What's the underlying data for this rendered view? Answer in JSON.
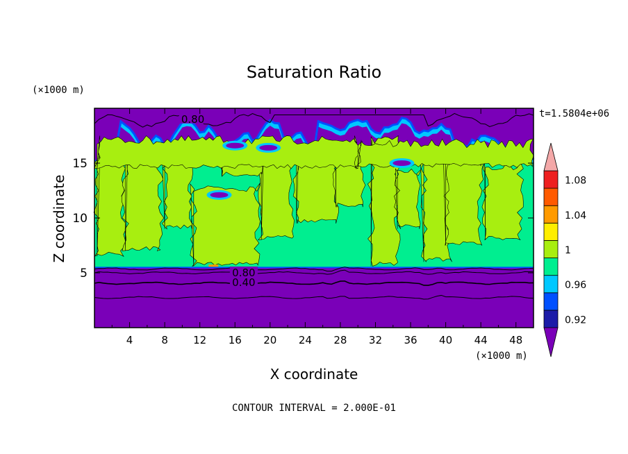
{
  "chart_data": {
    "type": "heatmap",
    "title": "Saturation Ratio",
    "xlabel": "X coordinate",
    "ylabel": "Z coordinate",
    "x_unit": "(×1000 m)",
    "y_unit": "(×1000 m)",
    "time_label": "t=1.5804e+06",
    "footer": "CONTOUR INTERVAL = 2.000E-01",
    "xlim": [
      0,
      50
    ],
    "ylim": [
      0,
      20
    ],
    "x_ticks": [
      4,
      8,
      12,
      16,
      20,
      24,
      28,
      32,
      36,
      40,
      44,
      48
    ],
    "y_ticks": [
      5,
      10,
      15
    ],
    "contour_labels": [
      {
        "text": "0.80",
        "x": 11.2,
        "z": 19.0
      },
      {
        "text": "0.80",
        "x": 17.0,
        "z": 5.0
      },
      {
        "text": "0.40",
        "x": 17.0,
        "z": 4.1
      }
    ],
    "contour_interval": 0.2,
    "colorbar": {
      "levels": [
        0.92,
        0.94,
        0.96,
        0.98,
        1.0,
        1.02,
        1.04,
        1.06,
        1.08,
        1.1
      ],
      "tick_labels": [
        "0.92",
        "0.96",
        "1",
        "1.04",
        "1.08"
      ],
      "colors": {
        "below": "#7a00b8",
        "0.92": "#1c1ca8",
        "0.94": "#0050ff",
        "0.96": "#00c8ff",
        "0.98": "#00ee90",
        "1.00": "#a8ee10",
        "1.02": "#ffee00",
        "1.04": "#ff9a00",
        "1.06": "#ff5a00",
        "1.08": "#ee2020",
        "above": "#f4a8a8"
      }
    },
    "regions": {
      "lower_layer": {
        "z_range": [
          0,
          5.5
        ],
        "value": "< 0.92"
      },
      "mid_layer": {
        "z_range": [
          5.5,
          16
        ],
        "values": [
          "0.98-1.00",
          "1.00-1.02"
        ]
      },
      "upper_layer": {
        "z_range": [
          16,
          20
        ],
        "values": [
          "< 0.92",
          "0.92-0.98"
        ]
      }
    }
  }
}
